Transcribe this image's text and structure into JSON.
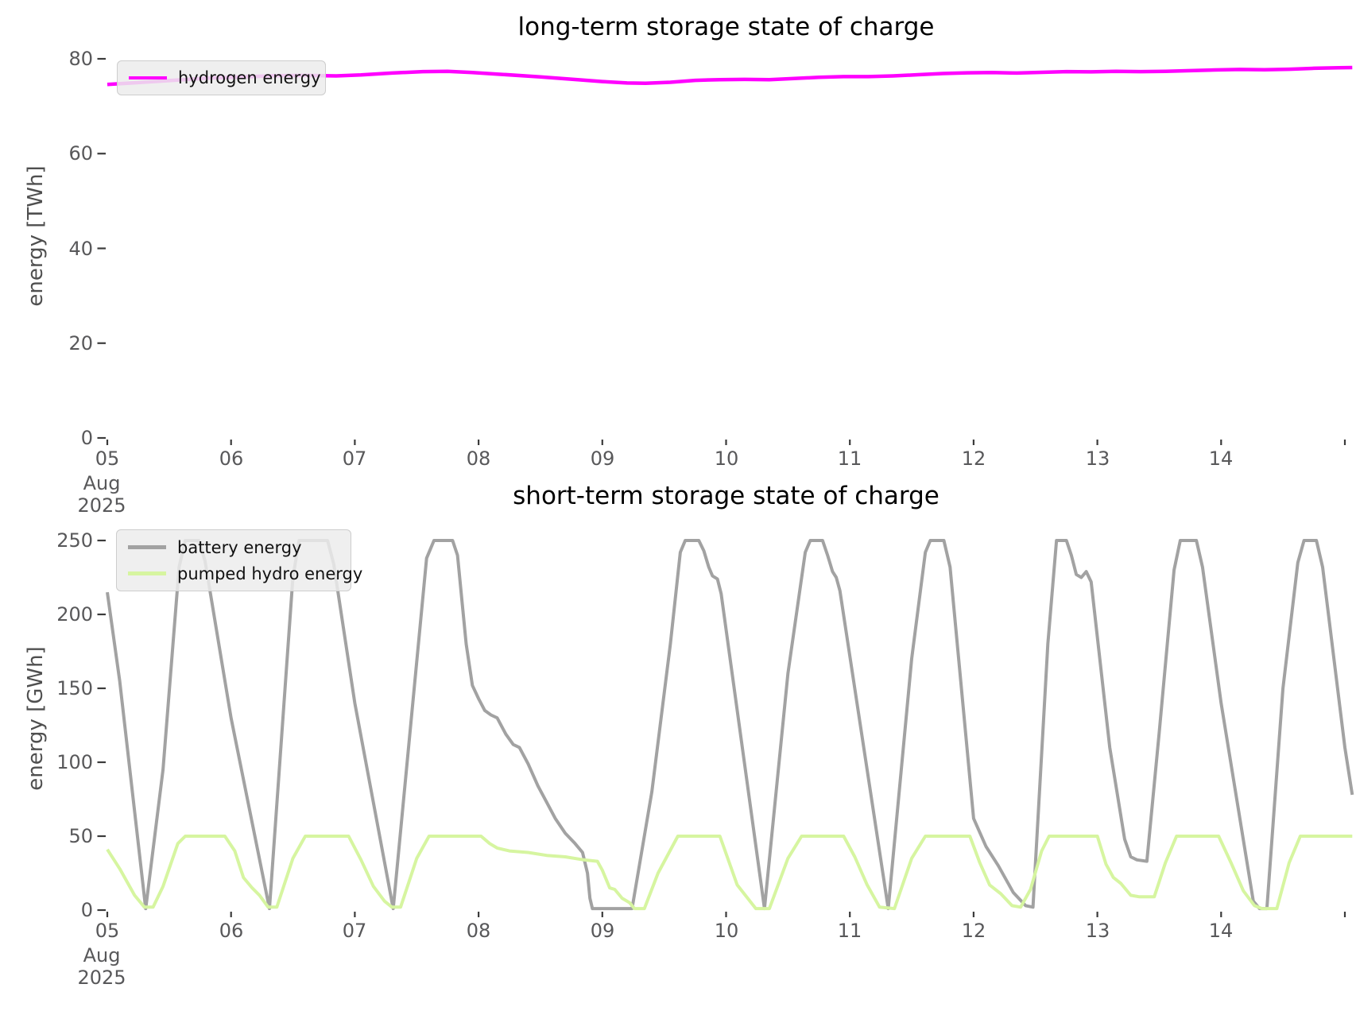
{
  "figure": {
    "background": "#ffffff",
    "tick_color": "#58585a",
    "axis_label_color": "#4f4f4f",
    "tick_mark_color": "#3b3b3b"
  },
  "chart_data": [
    {
      "type": "line",
      "title": "long-term storage state of charge",
      "ylabel": "energy [TWh]",
      "ylim": [
        0,
        80
      ],
      "grid": false,
      "legend_position": "upper-left",
      "y_tick_values": [
        0,
        20,
        40,
        60,
        80
      ],
      "y_tick_labels": [
        "0",
        "20",
        "40",
        "60",
        "80"
      ],
      "x_tick_days": [
        5,
        6,
        7,
        8,
        9,
        10,
        11,
        12,
        13,
        14
      ],
      "x_tick_labels": [
        "05",
        "06",
        "07",
        "08",
        "09",
        "10",
        "11",
        "12",
        "13",
        "14"
      ],
      "x_first_tick_sublabels": [
        "Aug",
        "2025"
      ],
      "x_range_days": [
        5,
        15.07
      ],
      "series": [
        {
          "name": "hydrogen energy",
          "color": "#ff00ff",
          "width": 4.5,
          "points": [
            [
              5.0,
              74.6
            ],
            [
              5.2,
              74.9
            ],
            [
              5.5,
              75.4
            ],
            [
              5.8,
              75.9
            ],
            [
              6.1,
              76.2
            ],
            [
              6.35,
              76.45
            ],
            [
              6.6,
              76.5
            ],
            [
              6.85,
              76.4
            ],
            [
              7.05,
              76.6
            ],
            [
              7.3,
              77.0
            ],
            [
              7.55,
              77.3
            ],
            [
              7.75,
              77.35
            ],
            [
              7.95,
              77.1
            ],
            [
              8.2,
              76.7
            ],
            [
              8.5,
              76.2
            ],
            [
              8.8,
              75.6
            ],
            [
              9.0,
              75.2
            ],
            [
              9.2,
              74.9
            ],
            [
              9.35,
              74.85
            ],
            [
              9.55,
              75.05
            ],
            [
              9.75,
              75.45
            ],
            [
              9.95,
              75.6
            ],
            [
              10.15,
              75.65
            ],
            [
              10.35,
              75.6
            ],
            [
              10.55,
              75.85
            ],
            [
              10.75,
              76.1
            ],
            [
              10.95,
              76.25
            ],
            [
              11.15,
              76.25
            ],
            [
              11.35,
              76.4
            ],
            [
              11.55,
              76.65
            ],
            [
              11.75,
              76.9
            ],
            [
              11.95,
              77.05
            ],
            [
              12.15,
              77.1
            ],
            [
              12.35,
              77.0
            ],
            [
              12.55,
              77.15
            ],
            [
              12.75,
              77.3
            ],
            [
              12.95,
              77.25
            ],
            [
              13.15,
              77.35
            ],
            [
              13.35,
              77.3
            ],
            [
              13.55,
              77.35
            ],
            [
              13.75,
              77.5
            ],
            [
              13.95,
              77.65
            ],
            [
              14.15,
              77.75
            ],
            [
              14.35,
              77.7
            ],
            [
              14.55,
              77.8
            ],
            [
              14.75,
              78.0
            ],
            [
              14.95,
              78.1
            ],
            [
              15.06,
              78.15
            ]
          ]
        }
      ]
    },
    {
      "type": "line",
      "title": "short-term storage state of charge",
      "ylabel": "energy [GWh]",
      "ylim": [
        0,
        250
      ],
      "grid": false,
      "legend_position": "upper-left",
      "y_tick_values": [
        0,
        50,
        100,
        150,
        200,
        250
      ],
      "y_tick_labels": [
        "0",
        "50",
        "100",
        "150",
        "200",
        "250"
      ],
      "x_tick_days": [
        5,
        6,
        7,
        8,
        9,
        10,
        11,
        12,
        13,
        14
      ],
      "x_tick_labels": [
        "05",
        "06",
        "07",
        "08",
        "09",
        "10",
        "11",
        "12",
        "13",
        "14"
      ],
      "x_first_tick_sublabels": [
        "Aug",
        "2025"
      ],
      "x_range_days": [
        5,
        15.07
      ],
      "series": [
        {
          "name": "battery energy",
          "color": "#a2a2a2",
          "width": 4,
          "points": [
            [
              5.0,
              215
            ],
            [
              5.1,
              155
            ],
            [
              5.31,
              1
            ],
            [
              5.45,
              95
            ],
            [
              5.58,
              232
            ],
            [
              5.63,
              250
            ],
            [
              5.74,
              250
            ],
            [
              5.79,
              236
            ],
            [
              6.0,
              130
            ],
            [
              6.31,
              1
            ],
            [
              6.5,
              225
            ],
            [
              6.55,
              250
            ],
            [
              6.78,
              250
            ],
            [
              6.83,
              234
            ],
            [
              7.0,
              140
            ],
            [
              7.31,
              1
            ],
            [
              7.58,
              238
            ],
            [
              7.64,
              250
            ],
            [
              7.79,
              250
            ],
            [
              7.83,
              240
            ],
            [
              7.9,
              180
            ],
            [
              7.95,
              152
            ],
            [
              8.0,
              143
            ],
            [
              8.05,
              135
            ],
            [
              8.1,
              132
            ],
            [
              8.15,
              130
            ],
            [
              8.22,
              119
            ],
            [
              8.28,
              112
            ],
            [
              8.33,
              110
            ],
            [
              8.4,
              99
            ],
            [
              8.48,
              84
            ],
            [
              8.55,
              73
            ],
            [
              8.62,
              62
            ],
            [
              8.7,
              52
            ],
            [
              8.78,
              45
            ],
            [
              8.84,
              39
            ],
            [
              8.88,
              25
            ],
            [
              8.9,
              8
            ],
            [
              8.92,
              1
            ],
            [
              9.24,
              1
            ],
            [
              9.4,
              80
            ],
            [
              9.55,
              180
            ],
            [
              9.63,
              242
            ],
            [
              9.67,
              250
            ],
            [
              9.78,
              250
            ],
            [
              9.82,
              243
            ],
            [
              9.86,
              232
            ],
            [
              9.89,
              226
            ],
            [
              9.93,
              224
            ],
            [
              9.96,
              214
            ],
            [
              10.31,
              1
            ],
            [
              10.5,
              160
            ],
            [
              10.64,
              242
            ],
            [
              10.68,
              250
            ],
            [
              10.78,
              250
            ],
            [
              10.82,
              240
            ],
            [
              10.86,
              229
            ],
            [
              10.89,
              225
            ],
            [
              10.92,
              216
            ],
            [
              11.31,
              1
            ],
            [
              11.5,
              170
            ],
            [
              11.61,
              242
            ],
            [
              11.65,
              250
            ],
            [
              11.76,
              250
            ],
            [
              11.81,
              232
            ],
            [
              12.0,
              62
            ],
            [
              12.1,
              43
            ],
            [
              12.2,
              30
            ],
            [
              12.32,
              12
            ],
            [
              12.42,
              3
            ],
            [
              12.48,
              2
            ],
            [
              12.6,
              180
            ],
            [
              12.67,
              250
            ],
            [
              12.75,
              250
            ],
            [
              12.79,
              240
            ],
            [
              12.83,
              227
            ],
            [
              12.87,
              225
            ],
            [
              12.91,
              229
            ],
            [
              12.95,
              222
            ],
            [
              13.1,
              110
            ],
            [
              13.22,
              48
            ],
            [
              13.27,
              36
            ],
            [
              13.32,
              34
            ],
            [
              13.4,
              33
            ],
            [
              13.5,
              120
            ],
            [
              13.62,
              230
            ],
            [
              13.67,
              250
            ],
            [
              13.8,
              250
            ],
            [
              13.85,
              232
            ],
            [
              14.0,
              140
            ],
            [
              14.26,
              6
            ],
            [
              14.31,
              1
            ],
            [
              14.37,
              1
            ],
            [
              14.5,
              150
            ],
            [
              14.62,
              235
            ],
            [
              14.67,
              250
            ],
            [
              14.77,
              250
            ],
            [
              14.82,
              232
            ],
            [
              15.0,
              110
            ],
            [
              15.06,
              78
            ]
          ]
        },
        {
          "name": "pumped hydro energy",
          "color": "#d6f5a0",
          "width": 4,
          "points": [
            [
              5.0,
              41
            ],
            [
              5.1,
              28
            ],
            [
              5.22,
              10
            ],
            [
              5.3,
              2
            ],
            [
              5.37,
              2
            ],
            [
              5.45,
              16
            ],
            [
              5.57,
              45
            ],
            [
              5.63,
              50
            ],
            [
              5.95,
              50
            ],
            [
              6.03,
              40
            ],
            [
              6.1,
              22
            ],
            [
              6.17,
              15
            ],
            [
              6.23,
              10
            ],
            [
              6.3,
              2
            ],
            [
              6.37,
              2
            ],
            [
              6.5,
              35
            ],
            [
              6.6,
              50
            ],
            [
              6.95,
              50
            ],
            [
              7.05,
              34
            ],
            [
              7.15,
              16
            ],
            [
              7.24,
              6
            ],
            [
              7.3,
              2
            ],
            [
              7.37,
              2
            ],
            [
              7.5,
              35
            ],
            [
              7.6,
              50
            ],
            [
              8.02,
              50
            ],
            [
              8.09,
              45
            ],
            [
              8.15,
              42
            ],
            [
              8.25,
              40
            ],
            [
              8.4,
              39
            ],
            [
              8.55,
              37
            ],
            [
              8.7,
              36
            ],
            [
              8.85,
              34
            ],
            [
              8.96,
              33
            ],
            [
              9.0,
              27
            ],
            [
              9.06,
              15
            ],
            [
              9.1,
              14
            ],
            [
              9.16,
              8
            ],
            [
              9.22,
              5
            ],
            [
              9.26,
              1
            ],
            [
              9.34,
              1
            ],
            [
              9.45,
              25
            ],
            [
              9.61,
              50
            ],
            [
              9.95,
              50
            ],
            [
              10.09,
              17
            ],
            [
              10.24,
              1
            ],
            [
              10.35,
              1
            ],
            [
              10.5,
              35
            ],
            [
              10.61,
              50
            ],
            [
              10.95,
              50
            ],
            [
              11.04,
              36
            ],
            [
              11.14,
              17
            ],
            [
              11.24,
              2
            ],
            [
              11.36,
              1
            ],
            [
              11.5,
              35
            ],
            [
              11.61,
              50
            ],
            [
              11.97,
              50
            ],
            [
              12.05,
              32
            ],
            [
              12.13,
              17
            ],
            [
              12.22,
              11
            ],
            [
              12.31,
              3
            ],
            [
              12.38,
              2
            ],
            [
              12.46,
              14
            ],
            [
              12.55,
              40
            ],
            [
              12.61,
              50
            ],
            [
              13.0,
              50
            ],
            [
              13.07,
              31
            ],
            [
              13.13,
              22
            ],
            [
              13.19,
              18
            ],
            [
              13.27,
              10
            ],
            [
              13.34,
              9
            ],
            [
              13.46,
              9
            ],
            [
              13.55,
              32
            ],
            [
              13.64,
              50
            ],
            [
              13.98,
              50
            ],
            [
              14.08,
              32
            ],
            [
              14.18,
              13
            ],
            [
              14.27,
              3
            ],
            [
              14.33,
              1
            ],
            [
              14.45,
              1
            ],
            [
              14.55,
              32
            ],
            [
              14.64,
              50
            ],
            [
              15.06,
              50
            ]
          ]
        }
      ]
    }
  ]
}
